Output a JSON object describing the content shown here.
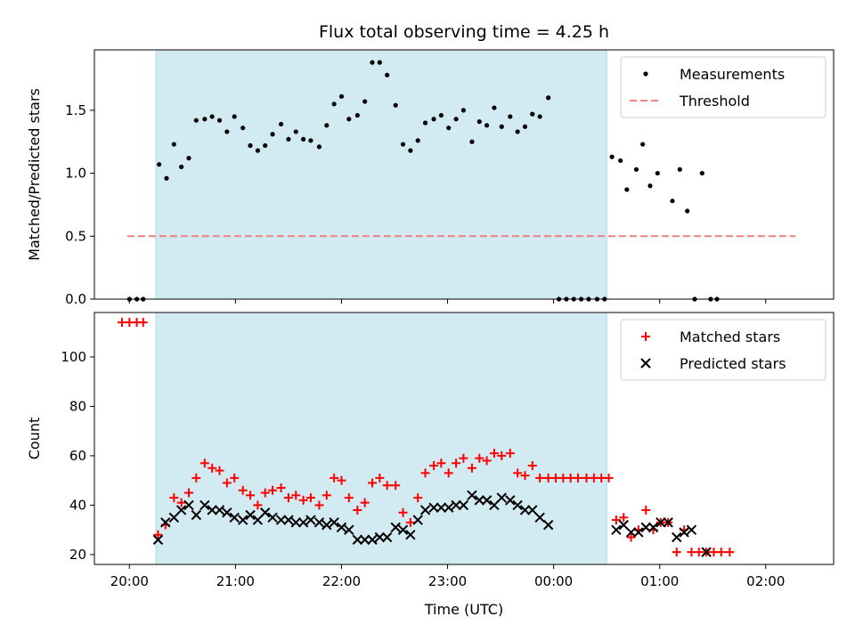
{
  "chart_data": {
    "type": "scatter",
    "title": "Flux total observing time = 4.25 h",
    "xlabel": "Time (UTC)",
    "x_unit": "hours since 20:00 UTC",
    "xlim": [
      -0.33,
      6.64
    ],
    "x_ticks": [
      {
        "value": 0,
        "label": "20:00"
      },
      {
        "value": 1,
        "label": "21:00"
      },
      {
        "value": 2,
        "label": "22:00"
      },
      {
        "value": 3,
        "label": "23:00"
      },
      {
        "value": 4,
        "label": "00:00"
      },
      {
        "value": 5,
        "label": "01:00"
      },
      {
        "value": 6,
        "label": "02:00"
      }
    ],
    "shaded_interval": {
      "start": 0.25,
      "end": 4.5,
      "color": "#add8e6"
    },
    "colors": {
      "matched": "#ff0000",
      "predicted": "#000000",
      "threshold": "#f08080",
      "measurements": "#000000",
      "shade": "#add8e6"
    },
    "panels": [
      {
        "id": "top",
        "ylabel": "Matched/Predicted stars",
        "ylim": [
          0,
          1.98
        ],
        "yticks": [
          0.0,
          0.5,
          1.0,
          1.5
        ],
        "ytick_labels": [
          "0.0",
          "0.5",
          "1.0",
          "1.5"
        ],
        "legend": {
          "position": "upper-right",
          "entries": [
            "Measurements",
            "Threshold"
          ]
        },
        "threshold": {
          "name": "Threshold",
          "y": 0.5,
          "x_range": [
            -0.02,
            6.28
          ]
        },
        "series": [
          {
            "name": "Measurements",
            "marker": "dot",
            "points": [
              [
                0.0,
                0.0
              ],
              [
                0.07,
                0.0
              ],
              [
                0.13,
                0.0
              ],
              [
                0.28,
                1.07
              ],
              [
                0.35,
                0.96
              ],
              [
                0.42,
                1.23
              ],
              [
                0.49,
                1.05
              ],
              [
                0.56,
                1.12
              ],
              [
                0.63,
                1.42
              ],
              [
                0.71,
                1.43
              ],
              [
                0.78,
                1.45
              ],
              [
                0.85,
                1.42
              ],
              [
                0.92,
                1.33
              ],
              [
                0.99,
                1.45
              ],
              [
                1.07,
                1.36
              ],
              [
                1.14,
                1.22
              ],
              [
                1.21,
                1.18
              ],
              [
                1.28,
                1.22
              ],
              [
                1.35,
                1.31
              ],
              [
                1.43,
                1.39
              ],
              [
                1.5,
                1.27
              ],
              [
                1.57,
                1.33
              ],
              [
                1.64,
                1.27
              ],
              [
                1.71,
                1.26
              ],
              [
                1.79,
                1.21
              ],
              [
                1.86,
                1.38
              ],
              [
                1.93,
                1.55
              ],
              [
                2.0,
                1.61
              ],
              [
                2.07,
                1.43
              ],
              [
                2.15,
                1.46
              ],
              [
                2.22,
                1.57
              ],
              [
                2.29,
                1.88
              ],
              [
                2.36,
                1.88
              ],
              [
                2.43,
                1.78
              ],
              [
                2.51,
                1.54
              ],
              [
                2.58,
                1.23
              ],
              [
                2.65,
                1.18
              ],
              [
                2.72,
                1.26
              ],
              [
                2.79,
                1.4
              ],
              [
                2.87,
                1.43
              ],
              [
                2.94,
                1.46
              ],
              [
                3.01,
                1.36
              ],
              [
                3.08,
                1.43
              ],
              [
                3.15,
                1.5
              ],
              [
                3.23,
                1.25
              ],
              [
                3.3,
                1.41
              ],
              [
                3.37,
                1.38
              ],
              [
                3.44,
                1.52
              ],
              [
                3.51,
                1.37
              ],
              [
                3.59,
                1.45
              ],
              [
                3.66,
                1.33
              ],
              [
                3.73,
                1.37
              ],
              [
                3.8,
                1.47
              ],
              [
                3.87,
                1.45
              ],
              [
                3.95,
                1.6
              ],
              [
                4.05,
                0.0
              ],
              [
                4.12,
                0.0
              ],
              [
                4.19,
                0.0
              ],
              [
                4.26,
                0.0
              ],
              [
                4.33,
                0.0
              ],
              [
                4.41,
                0.0
              ],
              [
                4.48,
                0.0
              ],
              [
                4.55,
                1.13
              ],
              [
                4.63,
                1.1
              ],
              [
                4.69,
                0.87
              ],
              [
                4.78,
                1.03
              ],
              [
                4.84,
                1.23
              ],
              [
                4.91,
                0.9
              ],
              [
                4.98,
                1.0
              ],
              [
                5.12,
                0.78
              ],
              [
                5.19,
                1.03
              ],
              [
                5.26,
                0.7
              ],
              [
                5.33,
                0.0
              ],
              [
                5.4,
                1.0
              ],
              [
                5.48,
                0.0
              ],
              [
                5.54,
                0.0
              ]
            ]
          }
        ]
      },
      {
        "id": "bottom",
        "ylabel": "Count",
        "ylim": [
          16,
          118
        ],
        "yticks": [
          20,
          40,
          60,
          80,
          100
        ],
        "ytick_labels": [
          "20",
          "40",
          "60",
          "80",
          "100"
        ],
        "legend": {
          "position": "upper-right",
          "entries": [
            "Matched stars",
            "Predicted stars"
          ]
        },
        "series": [
          {
            "name": "Matched stars",
            "marker": "plus",
            "points": [
              [
                -0.07,
                114
              ],
              [
                0.0,
                114
              ],
              [
                0.07,
                114
              ],
              [
                0.13,
                114
              ],
              [
                0.27,
                28
              ],
              [
                0.34,
                32
              ],
              [
                0.42,
                43
              ],
              [
                0.49,
                41
              ],
              [
                0.56,
                45
              ],
              [
                0.63,
                51
              ],
              [
                0.71,
                57
              ],
              [
                0.78,
                55
              ],
              [
                0.85,
                54
              ],
              [
                0.92,
                49
              ],
              [
                0.99,
                51
              ],
              [
                1.07,
                46
              ],
              [
                1.14,
                44
              ],
              [
                1.21,
                40
              ],
              [
                1.28,
                45
              ],
              [
                1.35,
                46
              ],
              [
                1.43,
                47
              ],
              [
                1.5,
                43
              ],
              [
                1.57,
                44
              ],
              [
                1.64,
                42
              ],
              [
                1.71,
                43
              ],
              [
                1.79,
                40
              ],
              [
                1.86,
                44
              ],
              [
                1.93,
                51
              ],
              [
                2.0,
                50
              ],
              [
                2.07,
                43
              ],
              [
                2.15,
                38
              ],
              [
                2.22,
                41
              ],
              [
                2.29,
                49
              ],
              [
                2.36,
                51
              ],
              [
                2.43,
                48
              ],
              [
                2.51,
                48
              ],
              [
                2.58,
                37
              ],
              [
                2.65,
                33
              ],
              [
                2.72,
                43
              ],
              [
                2.79,
                53
              ],
              [
                2.87,
                56
              ],
              [
                2.94,
                57
              ],
              [
                3.01,
                53
              ],
              [
                3.08,
                57
              ],
              [
                3.15,
                59
              ],
              [
                3.23,
                55
              ],
              [
                3.3,
                59
              ],
              [
                3.37,
                58
              ],
              [
                3.44,
                61
              ],
              [
                3.51,
                60
              ],
              [
                3.59,
                61
              ],
              [
                3.66,
                53
              ],
              [
                3.73,
                52
              ],
              [
                3.8,
                56
              ],
              [
                3.87,
                51
              ],
              [
                3.95,
                51
              ],
              [
                4.02,
                51
              ],
              [
                4.09,
                51
              ],
              [
                4.16,
                51
              ],
              [
                4.23,
                51
              ],
              [
                4.31,
                51
              ],
              [
                4.38,
                51
              ],
              [
                4.45,
                51
              ],
              [
                4.52,
                51
              ],
              [
                4.59,
                34
              ],
              [
                4.66,
                35
              ],
              [
                4.73,
                27
              ],
              [
                4.8,
                30
              ],
              [
                4.87,
                38
              ],
              [
                4.94,
                30
              ],
              [
                5.01,
                33
              ],
              [
                5.08,
                33
              ],
              [
                5.16,
                21
              ],
              [
                5.23,
                30
              ],
              [
                5.3,
                21
              ],
              [
                5.37,
                21
              ],
              [
                5.44,
                21
              ],
              [
                5.51,
                21
              ],
              [
                5.58,
                21
              ],
              [
                5.66,
                21
              ]
            ]
          },
          {
            "name": "Predicted stars",
            "marker": "x",
            "points": [
              [
                0.27,
                26
              ],
              [
                0.34,
                33
              ],
              [
                0.42,
                35
              ],
              [
                0.49,
                38
              ],
              [
                0.56,
                40
              ],
              [
                0.63,
                36
              ],
              [
                0.71,
                40
              ],
              [
                0.78,
                38
              ],
              [
                0.85,
                38
              ],
              [
                0.92,
                37
              ],
              [
                0.99,
                35
              ],
              [
                1.07,
                34
              ],
              [
                1.14,
                36
              ],
              [
                1.21,
                34
              ],
              [
                1.28,
                37
              ],
              [
                1.35,
                35
              ],
              [
                1.43,
                34
              ],
              [
                1.5,
                34
              ],
              [
                1.57,
                33
              ],
              [
                1.64,
                33
              ],
              [
                1.71,
                34
              ],
              [
                1.79,
                33
              ],
              [
                1.86,
                32
              ],
              [
                1.93,
                33
              ],
              [
                2.0,
                31
              ],
              [
                2.07,
                30
              ],
              [
                2.15,
                26
              ],
              [
                2.22,
                26
              ],
              [
                2.29,
                26
              ],
              [
                2.36,
                27
              ],
              [
                2.43,
                27
              ],
              [
                2.51,
                31
              ],
              [
                2.58,
                30
              ],
              [
                2.65,
                28
              ],
              [
                2.72,
                34
              ],
              [
                2.79,
                38
              ],
              [
                2.87,
                39
              ],
              [
                2.94,
                39
              ],
              [
                3.01,
                39
              ],
              [
                3.08,
                40
              ],
              [
                3.15,
                40
              ],
              [
                3.23,
                44
              ],
              [
                3.3,
                42
              ],
              [
                3.37,
                42
              ],
              [
                3.44,
                40
              ],
              [
                3.51,
                43
              ],
              [
                3.59,
                42
              ],
              [
                3.66,
                40
              ],
              [
                3.73,
                38
              ],
              [
                3.8,
                38
              ],
              [
                3.87,
                35
              ],
              [
                3.95,
                32
              ],
              [
                4.59,
                30
              ],
              [
                4.66,
                32
              ],
              [
                4.73,
                29
              ],
              [
                4.8,
                29
              ],
              [
                4.87,
                31
              ],
              [
                4.94,
                31
              ],
              [
                5.01,
                33
              ],
              [
                5.08,
                33
              ],
              [
                5.16,
                27
              ],
              [
                5.23,
                29
              ],
              [
                5.3,
                30
              ],
              [
                5.44,
                21
              ]
            ]
          }
        ]
      }
    ]
  }
}
